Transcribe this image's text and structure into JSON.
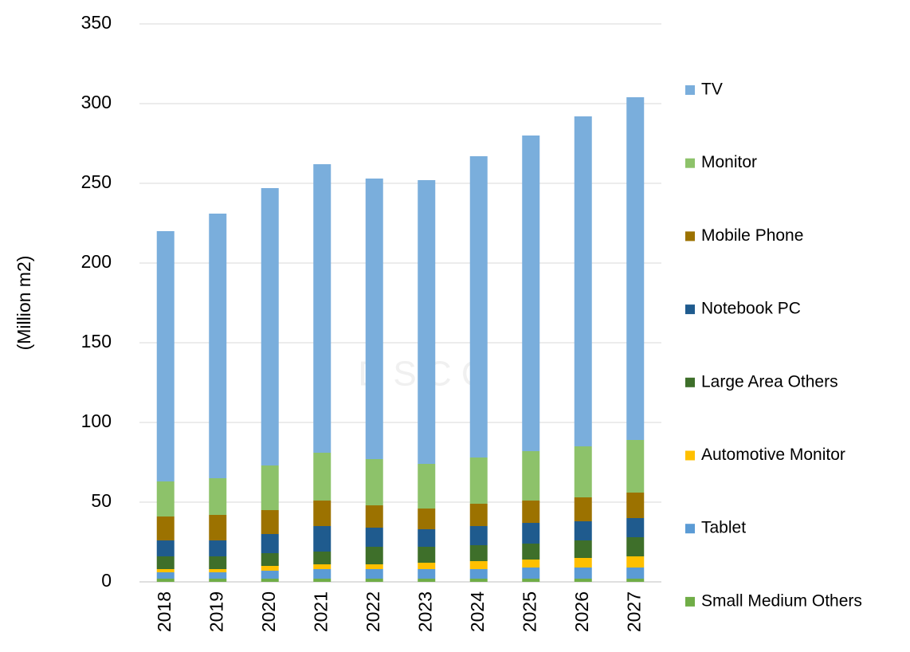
{
  "chart_data": {
    "type": "stacked_bar",
    "y_label": "(Million m2)",
    "watermark": "D S C C",
    "categories": [
      "2018",
      "2019",
      "2020",
      "2021",
      "2022",
      "2023",
      "2024",
      "2025",
      "2026",
      "2027"
    ],
    "series": [
      {
        "name": "Small Medium Others",
        "color": "#70ad47",
        "values": [
          2,
          2,
          2,
          2,
          2,
          2,
          2,
          2,
          2,
          2
        ]
      },
      {
        "name": "Tablet",
        "color": "#5b9bd5",
        "values": [
          4,
          4,
          5,
          6,
          6,
          6,
          6,
          7,
          7,
          7
        ]
      },
      {
        "name": "Automotive Monitor",
        "color": "#ffc000",
        "values": [
          2,
          2,
          3,
          3,
          3,
          4,
          5,
          5,
          6,
          7
        ]
      },
      {
        "name": "Large Area Others",
        "color": "#3e6f2a",
        "values": [
          8,
          8,
          8,
          8,
          11,
          10,
          10,
          10,
          11,
          12
        ]
      },
      {
        "name": "Notebook PC",
        "color": "#1f5b8e",
        "values": [
          10,
          10,
          12,
          16,
          12,
          11,
          12,
          13,
          12,
          12
        ]
      },
      {
        "name": "Mobile Phone",
        "color": "#9c7200",
        "values": [
          15,
          16,
          15,
          16,
          14,
          13,
          14,
          14,
          15,
          16
        ]
      },
      {
        "name": "Monitor",
        "color": "#8dc26a",
        "values": [
          22,
          23,
          28,
          30,
          29,
          28,
          29,
          31,
          32,
          33
        ]
      },
      {
        "name": "TV",
        "color": "#7aaedc",
        "values": [
          157,
          166,
          174,
          181,
          176,
          178,
          189,
          198,
          207,
          215
        ]
      }
    ],
    "ylim": [
      0,
      350
    ],
    "yticks": [
      0,
      50,
      100,
      150,
      200,
      250,
      300,
      350
    ],
    "grid": true,
    "legend": "right"
  }
}
